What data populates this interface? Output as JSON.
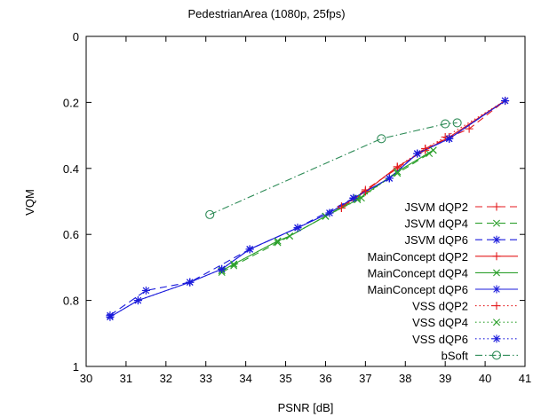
{
  "chart_data": {
    "type": "line",
    "title": "PedestrianArea (1080p, 25fps)",
    "xlabel": "PSNR [dB]",
    "ylabel": "VQM",
    "xlim": [
      30,
      41
    ],
    "ylim": [
      0,
      1
    ],
    "y_inverted": true,
    "grid": false,
    "legend_placement": "bottom-right",
    "xticks": [
      30,
      31,
      32,
      33,
      34,
      35,
      36,
      37,
      38,
      39,
      40,
      41
    ],
    "yticks": [
      0,
      0.2,
      0.4,
      0.6,
      0.8,
      1
    ],
    "ytick_labels": [
      "0",
      "0.2",
      "0.4",
      "0.6",
      "0.8",
      "1"
    ],
    "series": [
      {
        "name": "JSVM dQP2",
        "color": "#e41a1c",
        "line": "dashed",
        "marker": "plus",
        "points": [
          [
            36.4,
            0.52
          ],
          [
            37.0,
            0.465
          ],
          [
            37.8,
            0.4
          ],
          [
            38.5,
            0.34
          ],
          [
            39.1,
            0.305
          ],
          [
            39.6,
            0.28
          ],
          [
            40.5,
            0.195
          ]
        ]
      },
      {
        "name": "JSVM dQP4",
        "color": "#2ca02c",
        "line": "dashed",
        "marker": "cross",
        "points": [
          [
            33.4,
            0.715
          ],
          [
            33.7,
            0.695
          ],
          [
            34.8,
            0.625
          ],
          [
            35.1,
            0.605
          ],
          [
            36.0,
            0.545
          ],
          [
            36.8,
            0.49
          ],
          [
            37.8,
            0.415
          ],
          [
            38.6,
            0.355
          ]
        ]
      },
      {
        "name": "JSVM dQP6",
        "color": "#1a1adb",
        "line": "dashed",
        "marker": "star",
        "points": [
          [
            30.6,
            0.845
          ],
          [
            31.5,
            0.77
          ],
          [
            32.6,
            0.745
          ],
          [
            34.1,
            0.645
          ],
          [
            35.3,
            0.58
          ],
          [
            36.7,
            0.49
          ],
          [
            37.6,
            0.43
          ],
          [
            38.3,
            0.355
          ],
          [
            39.1,
            0.31
          ],
          [
            40.5,
            0.195
          ]
        ]
      },
      {
        "name": "MainConcept dQP2",
        "color": "#e41a1c",
        "line": "solid",
        "marker": "plus",
        "points": [
          [
            36.4,
            0.515
          ],
          [
            37.0,
            0.47
          ],
          [
            37.8,
            0.395
          ],
          [
            38.5,
            0.345
          ],
          [
            39.1,
            0.305
          ],
          [
            40.5,
            0.195
          ]
        ]
      },
      {
        "name": "MainConcept dQP4",
        "color": "#2ca02c",
        "line": "solid",
        "marker": "cross",
        "points": [
          [
            33.4,
            0.71
          ],
          [
            33.7,
            0.69
          ],
          [
            34.8,
            0.62
          ],
          [
            35.1,
            0.605
          ],
          [
            36.0,
            0.545
          ],
          [
            36.8,
            0.495
          ],
          [
            37.8,
            0.41
          ],
          [
            38.7,
            0.345
          ]
        ]
      },
      {
        "name": "MainConcept dQP6",
        "color": "#1a1adb",
        "line": "solid",
        "marker": "star",
        "points": [
          [
            30.6,
            0.85
          ],
          [
            31.3,
            0.8
          ],
          [
            32.6,
            0.745
          ],
          [
            33.4,
            0.705
          ],
          [
            34.1,
            0.645
          ],
          [
            35.3,
            0.58
          ],
          [
            36.1,
            0.535
          ],
          [
            36.7,
            0.49
          ],
          [
            37.6,
            0.43
          ],
          [
            38.3,
            0.355
          ],
          [
            39.1,
            0.31
          ],
          [
            40.5,
            0.195
          ]
        ]
      },
      {
        "name": "VSS dQP2",
        "color": "#e41a1c",
        "line": "dotted",
        "marker": "plus",
        "points": [
          [
            36.4,
            0.52
          ],
          [
            37.0,
            0.47
          ],
          [
            37.8,
            0.395
          ],
          [
            38.5,
            0.34
          ],
          [
            39.0,
            0.305
          ],
          [
            40.5,
            0.195
          ]
        ]
      },
      {
        "name": "VSS dQP4",
        "color": "#2ca02c",
        "line": "dotted",
        "marker": "cross",
        "points": [
          [
            33.4,
            0.71
          ],
          [
            33.7,
            0.69
          ],
          [
            34.8,
            0.62
          ],
          [
            35.1,
            0.605
          ],
          [
            36.0,
            0.545
          ],
          [
            36.9,
            0.49
          ],
          [
            37.8,
            0.41
          ],
          [
            38.7,
            0.345
          ]
        ]
      },
      {
        "name": "VSS dQP6",
        "color": "#1a1adb",
        "line": "dotted",
        "marker": "star",
        "points": [
          [
            30.6,
            0.85
          ],
          [
            31.3,
            0.8
          ],
          [
            32.6,
            0.745
          ],
          [
            33.4,
            0.705
          ],
          [
            34.1,
            0.645
          ],
          [
            35.3,
            0.58
          ],
          [
            36.1,
            0.535
          ],
          [
            36.7,
            0.49
          ],
          [
            37.6,
            0.43
          ],
          [
            38.3,
            0.355
          ],
          [
            39.1,
            0.31
          ],
          [
            40.5,
            0.195
          ]
        ]
      },
      {
        "name": "bSoft",
        "color": "#2e8b57",
        "line": "dashdot",
        "marker": "circle",
        "points": [
          [
            33.1,
            0.54
          ],
          [
            37.4,
            0.31
          ],
          [
            39.0,
            0.265
          ],
          [
            39.3,
            0.262
          ]
        ]
      }
    ]
  }
}
